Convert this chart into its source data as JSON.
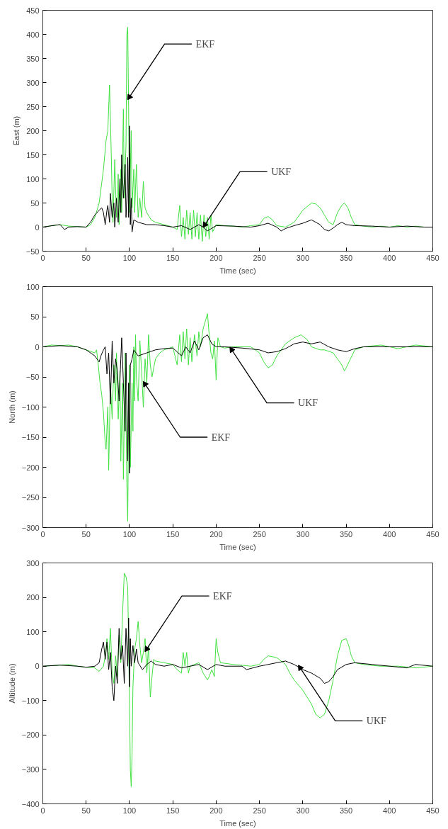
{
  "chart_data": [
    {
      "type": "line",
      "xlabel": "Time (sec)",
      "ylabel": "East (m)",
      "xlim": [
        0,
        450
      ],
      "ylim": [
        -50,
        450
      ],
      "xticks": [
        0,
        50,
        100,
        150,
        200,
        250,
        300,
        350,
        400,
        450
      ],
      "yticks": [
        -50,
        0,
        50,
        100,
        150,
        200,
        250,
        300,
        350,
        400,
        450
      ],
      "grid": false,
      "series": [
        {
          "color": "#3fe03f",
          "x": [
            0,
            10,
            20,
            30,
            40,
            50,
            55,
            60,
            65,
            70,
            73,
            75,
            77,
            79,
            80,
            81,
            83,
            85,
            87,
            88,
            90,
            91,
            93,
            94,
            96,
            97,
            98,
            99,
            100,
            102,
            103,
            105,
            106,
            108,
            110,
            112,
            114,
            116,
            118,
            120,
            125,
            130,
            140,
            150,
            155,
            158,
            160,
            162,
            164,
            166,
            168,
            170,
            172,
            174,
            176,
            178,
            180,
            182,
            184,
            186,
            188,
            190,
            192,
            194,
            196,
            200,
            210,
            220,
            230,
            240,
            250,
            255,
            260,
            265,
            270,
            280,
            290,
            300,
            310,
            315,
            320,
            325,
            330,
            335,
            340,
            345,
            348,
            352,
            356,
            360,
            370,
            380,
            390,
            400,
            410,
            420,
            430,
            440,
            450
          ],
          "values": [
            0,
            3,
            5,
            2,
            1,
            0,
            5,
            20,
            50,
            120,
            180,
            200,
            295,
            150,
            60,
            10,
            140,
            20,
            110,
            5,
            120,
            30,
            245,
            60,
            170,
            400,
            415,
            250,
            30,
            200,
            40,
            120,
            30,
            130,
            20,
            60,
            20,
            95,
            40,
            30,
            15,
            10,
            5,
            0,
            -5,
            45,
            -20,
            20,
            -25,
            35,
            -15,
            30,
            -25,
            35,
            -20,
            30,
            -25,
            25,
            -30,
            25,
            -20,
            20,
            -25,
            25,
            -10,
            5,
            3,
            2,
            0,
            3,
            5,
            18,
            22,
            15,
            3,
            0,
            10,
            35,
            50,
            48,
            40,
            25,
            10,
            5,
            30,
            45,
            50,
            40,
            20,
            5,
            2,
            0,
            2,
            0,
            3,
            0,
            2,
            0,
            0
          ]
        },
        {
          "color": "#000000",
          "x": [
            0,
            15,
            20,
            25,
            30,
            40,
            50,
            55,
            60,
            65,
            68,
            70,
            72,
            74,
            75,
            77,
            78,
            80,
            82,
            83,
            85,
            87,
            89,
            90,
            91,
            93,
            95,
            96,
            97,
            98,
            99,
            100,
            101,
            102,
            103,
            105,
            110,
            120,
            130,
            140,
            150,
            160,
            170,
            180,
            185,
            190,
            200,
            220,
            240,
            250,
            260,
            270,
            275,
            280,
            290,
            300,
            310,
            315,
            320,
            325,
            330,
            335,
            340,
            345,
            350,
            360,
            380,
            400,
            420,
            440,
            450
          ],
          "values": [
            0,
            4,
            5,
            -5,
            0,
            1,
            0,
            10,
            25,
            35,
            40,
            30,
            5,
            35,
            45,
            10,
            70,
            20,
            50,
            0,
            60,
            10,
            100,
            30,
            150,
            60,
            130,
            20,
            60,
            145,
            20,
            210,
            5,
            60,
            -10,
            15,
            10,
            5,
            5,
            3,
            0,
            3,
            -5,
            5,
            0,
            -8,
            3,
            2,
            0,
            3,
            8,
            0,
            -8,
            -3,
            3,
            8,
            15,
            10,
            5,
            -5,
            -8,
            -2,
            5,
            10,
            5,
            3,
            2,
            0,
            2,
            0,
            0
          ]
        }
      ],
      "annotations": [
        {
          "text": "EKF",
          "x": 100,
          "y": 270
        },
        {
          "text": "UKF",
          "x": 187,
          "y": 5
        }
      ]
    },
    {
      "type": "line",
      "xlabel": "Time (sec)",
      "ylabel": "North (m)",
      "xlim": [
        0,
        450
      ],
      "ylim": [
        -300,
        100
      ],
      "xticks": [
        0,
        50,
        100,
        150,
        200,
        250,
        300,
        350,
        400,
        450
      ],
      "yticks": [
        -300,
        -250,
        -200,
        -150,
        -100,
        -50,
        0,
        50,
        100
      ],
      "grid": false,
      "series": [
        {
          "color": "#3fe03f",
          "x": [
            0,
            10,
            20,
            30,
            40,
            50,
            60,
            62,
            64,
            66,
            68,
            70,
            72,
            73,
            75,
            76,
            78,
            80,
            82,
            84,
            85,
            87,
            89,
            90,
            92,
            93,
            95,
            97,
            98,
            99,
            100,
            101,
            103,
            104,
            105,
            106,
            107,
            108,
            110,
            112,
            114,
            116,
            118,
            120,
            122,
            124,
            126,
            130,
            135,
            140,
            150,
            155,
            158,
            160,
            162,
            164,
            166,
            168,
            170,
            172,
            175,
            178,
            180,
            182,
            185,
            188,
            190,
            192,
            194,
            196,
            198,
            200,
            202,
            205,
            210,
            220,
            240,
            250,
            255,
            260,
            265,
            270,
            280,
            290,
            298,
            305,
            310,
            320,
            325,
            335,
            340,
            345,
            348,
            350,
            355,
            360,
            370,
            390,
            410,
            430,
            450
          ],
          "values": [
            0,
            3,
            2,
            3,
            0,
            -5,
            -10,
            -5,
            -30,
            -60,
            -80,
            -110,
            -160,
            -170,
            -100,
            -205,
            -60,
            -120,
            -30,
            -90,
            -10,
            -120,
            -40,
            -190,
            -60,
            -220,
            -10,
            -230,
            -290,
            -100,
            -30,
            -200,
            -60,
            -140,
            0,
            -90,
            20,
            -50,
            -90,
            10,
            -40,
            -100,
            -20,
            -60,
            20,
            -30,
            -50,
            -20,
            -10,
            -5,
            0,
            -30,
            20,
            -25,
            25,
            -20,
            30,
            -30,
            15,
            -25,
            20,
            -15,
            25,
            0,
            30,
            45,
            55,
            20,
            -10,
            -20,
            10,
            -55,
            15,
            0,
            -2,
            0,
            0,
            -10,
            -25,
            -35,
            -30,
            -15,
            5,
            15,
            20,
            12,
            0,
            -5,
            -5,
            -10,
            -20,
            -30,
            -40,
            -35,
            -20,
            -5,
            0,
            3,
            -3,
            3,
            0
          ]
        },
        {
          "color": "#000000",
          "x": [
            0,
            20,
            40,
            50,
            60,
            65,
            67,
            70,
            72,
            74,
            76,
            78,
            80,
            82,
            84,
            86,
            88,
            90,
            91,
            93,
            95,
            96,
            98,
            99,
            100,
            101,
            103,
            105,
            110,
            120,
            130,
            140,
            150,
            160,
            165,
            170,
            175,
            180,
            185,
            190,
            195,
            200,
            210,
            230,
            250,
            260,
            270,
            280,
            290,
            300,
            310,
            320,
            330,
            340,
            350,
            360,
            370,
            400,
            420,
            450
          ],
          "values": [
            0,
            2,
            0,
            -5,
            -15,
            -25,
            -15,
            -5,
            0,
            -45,
            -10,
            -95,
            10,
            -60,
            -20,
            -40,
            -90,
            -20,
            15,
            -60,
            -140,
            -10,
            -190,
            -60,
            -210,
            -30,
            -20,
            -5,
            -15,
            -10,
            -5,
            -3,
            -2,
            -15,
            0,
            -10,
            10,
            -5,
            15,
            20,
            5,
            0,
            0,
            -2,
            -5,
            -10,
            -8,
            -3,
            5,
            8,
            5,
            8,
            0,
            -5,
            -8,
            -3,
            0,
            0,
            0,
            0
          ]
        }
      ],
      "annotations": [
        {
          "text": "EKF",
          "x": 118,
          "y": -62
        },
        {
          "text": "UKF",
          "x": 218,
          "y": -5
        }
      ]
    },
    {
      "type": "line",
      "xlabel": "Time (sec)",
      "ylabel": "Altitude (m)",
      "xlim": [
        0,
        450
      ],
      "ylim": [
        -400,
        300
      ],
      "xticks": [
        0,
        50,
        100,
        150,
        200,
        250,
        300,
        350,
        400,
        450
      ],
      "yticks": [
        -400,
        -300,
        -200,
        -100,
        0,
        100,
        200,
        300
      ],
      "grid": false,
      "series": [
        {
          "color": "#3fe03f",
          "x": [
            0,
            20,
            30,
            40,
            50,
            60,
            65,
            70,
            72,
            74,
            76,
            78,
            80,
            82,
            84,
            86,
            88,
            90,
            92,
            94,
            96,
            98,
            99,
            100,
            101,
            102,
            103,
            104,
            106,
            108,
            110,
            112,
            114,
            116,
            118,
            120,
            122,
            124,
            126,
            128,
            130,
            140,
            150,
            155,
            160,
            162,
            164,
            166,
            168,
            170,
            180,
            185,
            190,
            192,
            195,
            198,
            200,
            202,
            205,
            220,
            240,
            250,
            255,
            260,
            270,
            280,
            285,
            290,
            300,
            310,
            315,
            320,
            325,
            330,
            335,
            340,
            345,
            350,
            353,
            356,
            360,
            370,
            390,
            410,
            430,
            450
          ],
          "values": [
            0,
            3,
            5,
            0,
            -3,
            -5,
            -15,
            0,
            30,
            80,
            20,
            110,
            -20,
            -50,
            30,
            -30,
            90,
            10,
            150,
            270,
            260,
            230,
            60,
            -100,
            -300,
            -350,
            -250,
            -60,
            50,
            80,
            130,
            60,
            10,
            40,
            80,
            -20,
            60,
            -90,
            -30,
            20,
            15,
            10,
            5,
            -10,
            -20,
            40,
            0,
            40,
            -20,
            0,
            10,
            -20,
            -40,
            -30,
            -10,
            -30,
            80,
            40,
            10,
            5,
            0,
            5,
            20,
            30,
            25,
            5,
            -20,
            -40,
            -70,
            -110,
            -140,
            -150,
            -140,
            -100,
            -40,
            30,
            75,
            80,
            60,
            30,
            10,
            5,
            0,
            0,
            -5,
            0
          ]
        },
        {
          "color": "#000000",
          "x": [
            0,
            20,
            40,
            50,
            60,
            65,
            68,
            70,
            72,
            74,
            76,
            78,
            80,
            82,
            84,
            86,
            88,
            90,
            92,
            94,
            96,
            98,
            99,
            100,
            101,
            102,
            104,
            106,
            108,
            110,
            115,
            120,
            125,
            130,
            140,
            150,
            160,
            170,
            180,
            190,
            200,
            210,
            230,
            235,
            250,
            260,
            270,
            280,
            290,
            300,
            310,
            320,
            325,
            330,
            335,
            340,
            350,
            360,
            380,
            400,
            420,
            430,
            450
          ],
          "values": [
            0,
            3,
            0,
            -3,
            0,
            10,
            50,
            70,
            20,
            70,
            -10,
            40,
            -60,
            -100,
            0,
            -50,
            110,
            20,
            60,
            -50,
            110,
            0,
            140,
            -60,
            80,
            0,
            60,
            10,
            50,
            10,
            -10,
            5,
            15,
            5,
            0,
            5,
            -5,
            0,
            5,
            -10,
            5,
            0,
            0,
            -10,
            0,
            5,
            10,
            15,
            5,
            -10,
            -20,
            -35,
            -50,
            -45,
            -30,
            -10,
            5,
            10,
            5,
            0,
            -5,
            5,
            0
          ]
        }
      ],
      "annotations": [
        {
          "text": "EKF",
          "x": 120,
          "y": 50
        },
        {
          "text": "UKF",
          "x": 297,
          "y": -5
        }
      ]
    }
  ]
}
